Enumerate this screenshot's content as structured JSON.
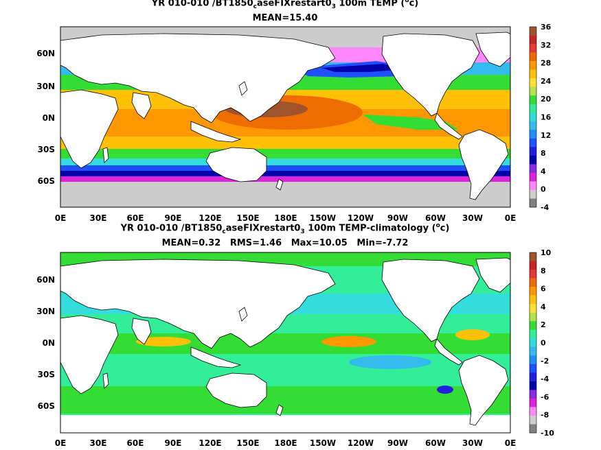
{
  "panels": [
    {
      "title_parts": [
        "YR 010-010 /BT1850",
        "c",
        "aseFIXrestart0",
        "3",
        " 100m TEMP (",
        "o",
        "c)"
      ],
      "stats": "MEAN=15.40",
      "lat_ticks": [
        "60N",
        "30N",
        "0N",
        "30S",
        "60S"
      ],
      "lon_ticks": [
        "0E",
        "30E",
        "60E",
        "90E",
        "120E",
        "150E",
        "180E",
        "150W",
        "120W",
        "90W",
        "60W",
        "30W",
        "0E"
      ],
      "colorbar": {
        "labels": [
          "36",
          "32",
          "28",
          "24",
          "20",
          "16",
          "12",
          "8",
          "4",
          "0",
          "-4"
        ],
        "colors": [
          "#a0522d",
          "#c62828",
          "#e53935",
          "#ef6c00",
          "#ff9800",
          "#ffc107",
          "#ffe033",
          "#b2e34a",
          "#33dd33",
          "#33ee99",
          "#33dddd",
          "#33bbee",
          "#1e90ff",
          "#1f50ff",
          "#2020dd",
          "#0000aa",
          "#8a2be2",
          "#dd22dd",
          "#ff88ff",
          "#cccccc",
          "#808080"
        ]
      }
    },
    {
      "title_parts": [
        "YR 010-010 /BT1850",
        "c",
        "aseFIXrestart0",
        "3",
        " 100m TEMP-climatology (",
        "o",
        "c)"
      ],
      "stats": "MEAN=0.32   RMS=1.46   Max=10.05   Min=-7.72",
      "lat_ticks": [
        "60N",
        "30N",
        "0N",
        "30S",
        "60S"
      ],
      "lon_ticks": [
        "0E",
        "30E",
        "60E",
        "90E",
        "120E",
        "150E",
        "180E",
        "150W",
        "120W",
        "90W",
        "60W",
        "30W",
        "0E"
      ],
      "colorbar": {
        "labels": [
          "10",
          "8",
          "6",
          "4",
          "2",
          "0",
          "-2",
          "-4",
          "-6",
          "-8",
          "-10"
        ],
        "colors": [
          "#a0522d",
          "#c62828",
          "#e53935",
          "#ef6c00",
          "#ff9800",
          "#ffc107",
          "#ffe033",
          "#b2e34a",
          "#33dd33",
          "#33ee99",
          "#33dddd",
          "#33bbee",
          "#1e90ff",
          "#1f50ff",
          "#2020dd",
          "#0000aa",
          "#8a2be2",
          "#dd22dd",
          "#ff88ff",
          "#cccccc",
          "#808080"
        ]
      }
    }
  ]
}
